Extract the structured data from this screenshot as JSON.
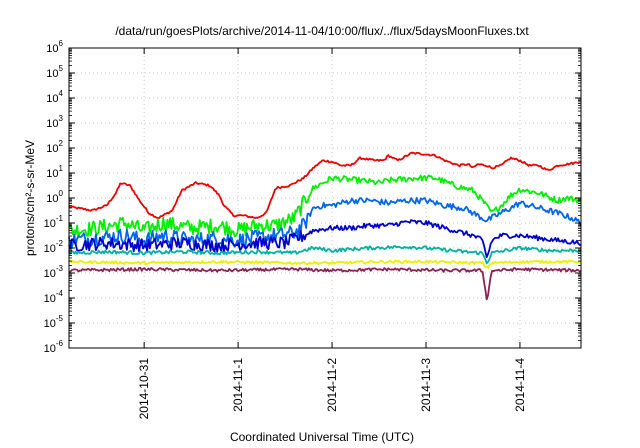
{
  "chart_data": {
    "type": "line",
    "title": "/data/run/goesPlots/archive/2014-11-04/10:00/flux/../flux/5daysMoonFluxes.txt",
    "xlabel": "Coordinated Universal Time (UTC)",
    "ylabel": "protons/cm²-s-sr-MeV",
    "yscale": "log",
    "ylim_exp": [
      -6,
      6
    ],
    "xlim_days": [
      -0.8,
      4.65
    ],
    "x_ticks": [
      {
        "day": 0,
        "label": "2014-10-31"
      },
      {
        "day": 1,
        "label": "2014-11-1"
      },
      {
        "day": 2,
        "label": "2014-11-2"
      },
      {
        "day": 3,
        "label": "2014-11-3"
      },
      {
        "day": 4,
        "label": "2014-11-4"
      }
    ],
    "y_tick_exponents": [
      -6,
      -5,
      -4,
      -3,
      -2,
      -1,
      0,
      1,
      2,
      3,
      4,
      5,
      6
    ],
    "grid": true,
    "series": [
      {
        "color": "#ee0000",
        "noise": 0.04,
        "points": [
          [
            -0.8,
            -0.35
          ],
          [
            -0.55,
            -0.5
          ],
          [
            -0.4,
            -0.3
          ],
          [
            -0.3,
            0.2
          ],
          [
            -0.25,
            0.6
          ],
          [
            -0.15,
            0.5
          ],
          [
            -0.05,
            -0.1
          ],
          [
            0.05,
            -0.6
          ],
          [
            0.15,
            -0.8
          ],
          [
            0.3,
            -0.5
          ],
          [
            0.4,
            0.3
          ],
          [
            0.55,
            0.6
          ],
          [
            0.7,
            0.5
          ],
          [
            0.8,
            0.1
          ],
          [
            0.85,
            -0.3
          ],
          [
            0.95,
            -0.7
          ],
          [
            1.05,
            -0.7
          ],
          [
            1.2,
            -0.8
          ],
          [
            1.3,
            -0.6
          ],
          [
            1.4,
            0.4
          ],
          [
            1.55,
            0.5
          ],
          [
            1.7,
            0.8
          ],
          [
            1.8,
            1.2
          ],
          [
            1.9,
            1.5
          ],
          [
            2.0,
            1.45
          ],
          [
            2.1,
            1.3
          ],
          [
            2.15,
            1.3
          ],
          [
            2.2,
            1.3
          ],
          [
            2.3,
            1.6
          ],
          [
            2.45,
            1.5
          ],
          [
            2.55,
            1.5
          ],
          [
            2.6,
            1.7
          ],
          [
            2.7,
            1.5
          ],
          [
            2.85,
            1.8
          ],
          [
            3.0,
            1.75
          ],
          [
            3.1,
            1.7
          ],
          [
            3.2,
            1.5
          ],
          [
            3.35,
            1.3
          ],
          [
            3.45,
            1.35
          ],
          [
            3.5,
            1.2
          ],
          [
            3.55,
            1.35
          ],
          [
            3.65,
            1.3
          ],
          [
            3.7,
            1.2
          ],
          [
            3.8,
            1.3
          ],
          [
            3.9,
            1.6
          ],
          [
            4.0,
            1.5
          ],
          [
            4.1,
            1.3
          ],
          [
            4.2,
            1.3
          ],
          [
            4.3,
            1.1
          ],
          [
            4.4,
            1.3
          ],
          [
            4.5,
            1.35
          ],
          [
            4.65,
            1.45
          ]
        ]
      },
      {
        "color": "#00ee00",
        "noise": 0.12,
        "points": [
          [
            -0.8,
            -1.3
          ],
          [
            -0.5,
            -1.2
          ],
          [
            -0.2,
            -1.0
          ],
          [
            0.0,
            -1.3
          ],
          [
            0.2,
            -1.0
          ],
          [
            0.5,
            -1.2
          ],
          [
            0.8,
            -1.1
          ],
          [
            1.0,
            -1.3
          ],
          [
            1.2,
            -1.1
          ],
          [
            1.4,
            -1.1
          ],
          [
            1.6,
            -0.8
          ],
          [
            1.7,
            -0.2
          ],
          [
            1.8,
            0.4
          ],
          [
            1.9,
            0.6
          ],
          [
            2.0,
            0.8
          ],
          [
            2.3,
            0.7
          ],
          [
            2.5,
            0.6
          ],
          [
            2.6,
            0.7
          ],
          [
            2.9,
            0.8
          ],
          [
            3.1,
            0.8
          ],
          [
            3.3,
            0.5
          ],
          [
            3.5,
            0.3
          ],
          [
            3.6,
            -0.1
          ],
          [
            3.7,
            -0.6
          ],
          [
            3.8,
            -0.3
          ],
          [
            3.9,
            0.1
          ],
          [
            4.0,
            0.35
          ],
          [
            4.2,
            0.2
          ],
          [
            4.4,
            -0.1
          ],
          [
            4.5,
            0.0
          ],
          [
            4.65,
            -0.1
          ]
        ]
      },
      {
        "color": "#0066ee",
        "noise": 0.12,
        "points": [
          [
            -0.8,
            -1.7
          ],
          [
            -0.5,
            -1.6
          ],
          [
            -0.2,
            -1.5
          ],
          [
            0.0,
            -1.7
          ],
          [
            0.2,
            -1.5
          ],
          [
            0.5,
            -1.7
          ],
          [
            0.8,
            -1.6
          ],
          [
            1.0,
            -1.7
          ],
          [
            1.2,
            -1.6
          ],
          [
            1.4,
            -1.5
          ],
          [
            1.6,
            -1.4
          ],
          [
            1.7,
            -1.1
          ],
          [
            1.8,
            -0.4
          ],
          [
            1.9,
            -0.3
          ],
          [
            2.0,
            -0.3
          ],
          [
            2.2,
            -0.1
          ],
          [
            2.4,
            -0.1
          ],
          [
            2.6,
            -0.2
          ],
          [
            2.8,
            -0.1
          ],
          [
            3.0,
            -0.1
          ],
          [
            3.2,
            -0.3
          ],
          [
            3.4,
            -0.4
          ],
          [
            3.55,
            -0.7
          ],
          [
            3.65,
            -0.9
          ],
          [
            3.75,
            -0.7
          ],
          [
            3.9,
            -0.4
          ],
          [
            4.0,
            -0.2
          ],
          [
            4.2,
            -0.4
          ],
          [
            4.4,
            -0.6
          ],
          [
            4.55,
            -0.8
          ],
          [
            4.65,
            -1.0
          ]
        ]
      },
      {
        "color": "#0000cc",
        "noise": 0.1,
        "points": [
          [
            -0.8,
            -1.9
          ],
          [
            -0.4,
            -1.8
          ],
          [
            0.0,
            -1.9
          ],
          [
            0.4,
            -1.8
          ],
          [
            0.8,
            -1.9
          ],
          [
            1.2,
            -1.8
          ],
          [
            1.5,
            -1.8
          ],
          [
            1.7,
            -1.5
          ],
          [
            1.8,
            -1.3
          ],
          [
            2.0,
            -1.2
          ],
          [
            2.2,
            -1.2
          ],
          [
            2.4,
            -1.1
          ],
          [
            2.6,
            -1.1
          ],
          [
            2.8,
            -0.95
          ],
          [
            3.0,
            -1.0
          ],
          [
            3.2,
            -1.2
          ],
          [
            3.4,
            -1.4
          ],
          [
            3.5,
            -1.5
          ],
          [
            3.6,
            -1.7
          ],
          [
            3.65,
            -2.4
          ],
          [
            3.7,
            -1.7
          ],
          [
            3.8,
            -1.5
          ],
          [
            4.0,
            -1.5
          ],
          [
            4.2,
            -1.6
          ],
          [
            4.4,
            -1.7
          ],
          [
            4.65,
            -1.8
          ]
        ]
      },
      {
        "color": "#00b0a0",
        "noise": 0.07,
        "points": [
          [
            -0.8,
            -2.2
          ],
          [
            -0.4,
            -2.15
          ],
          [
            0.0,
            -2.2
          ],
          [
            0.4,
            -2.15
          ],
          [
            0.8,
            -2.2
          ],
          [
            1.2,
            -2.15
          ],
          [
            1.6,
            -2.2
          ],
          [
            1.8,
            -2.0
          ],
          [
            2.0,
            -2.1
          ],
          [
            2.4,
            -2.0
          ],
          [
            2.8,
            -1.95
          ],
          [
            3.0,
            -2.0
          ],
          [
            3.4,
            -2.15
          ],
          [
            3.6,
            -2.2
          ],
          [
            3.65,
            -2.6
          ],
          [
            3.7,
            -2.2
          ],
          [
            4.0,
            -2.0
          ],
          [
            4.3,
            -2.1
          ],
          [
            4.65,
            -2.1
          ]
        ]
      },
      {
        "color": "#eeee00",
        "noise": 0.05,
        "points": [
          [
            -0.8,
            -2.55
          ],
          [
            0.0,
            -2.6
          ],
          [
            0.8,
            -2.55
          ],
          [
            1.6,
            -2.6
          ],
          [
            2.0,
            -2.6
          ],
          [
            2.5,
            -2.55
          ],
          [
            3.0,
            -2.55
          ],
          [
            3.6,
            -2.6
          ],
          [
            3.65,
            -2.8
          ],
          [
            3.7,
            -2.6
          ],
          [
            4.0,
            -2.55
          ],
          [
            4.65,
            -2.55
          ]
        ]
      },
      {
        "color": "#8b2252",
        "noise": 0.06,
        "points": [
          [
            -0.8,
            -2.9
          ],
          [
            0.0,
            -2.85
          ],
          [
            0.8,
            -2.9
          ],
          [
            1.6,
            -2.85
          ],
          [
            2.0,
            -2.9
          ],
          [
            2.6,
            -2.85
          ],
          [
            3.2,
            -2.9
          ],
          [
            3.6,
            -2.9
          ],
          [
            3.65,
            -4.1
          ],
          [
            3.7,
            -2.9
          ],
          [
            4.0,
            -2.85
          ],
          [
            4.65,
            -2.9
          ]
        ]
      }
    ]
  }
}
